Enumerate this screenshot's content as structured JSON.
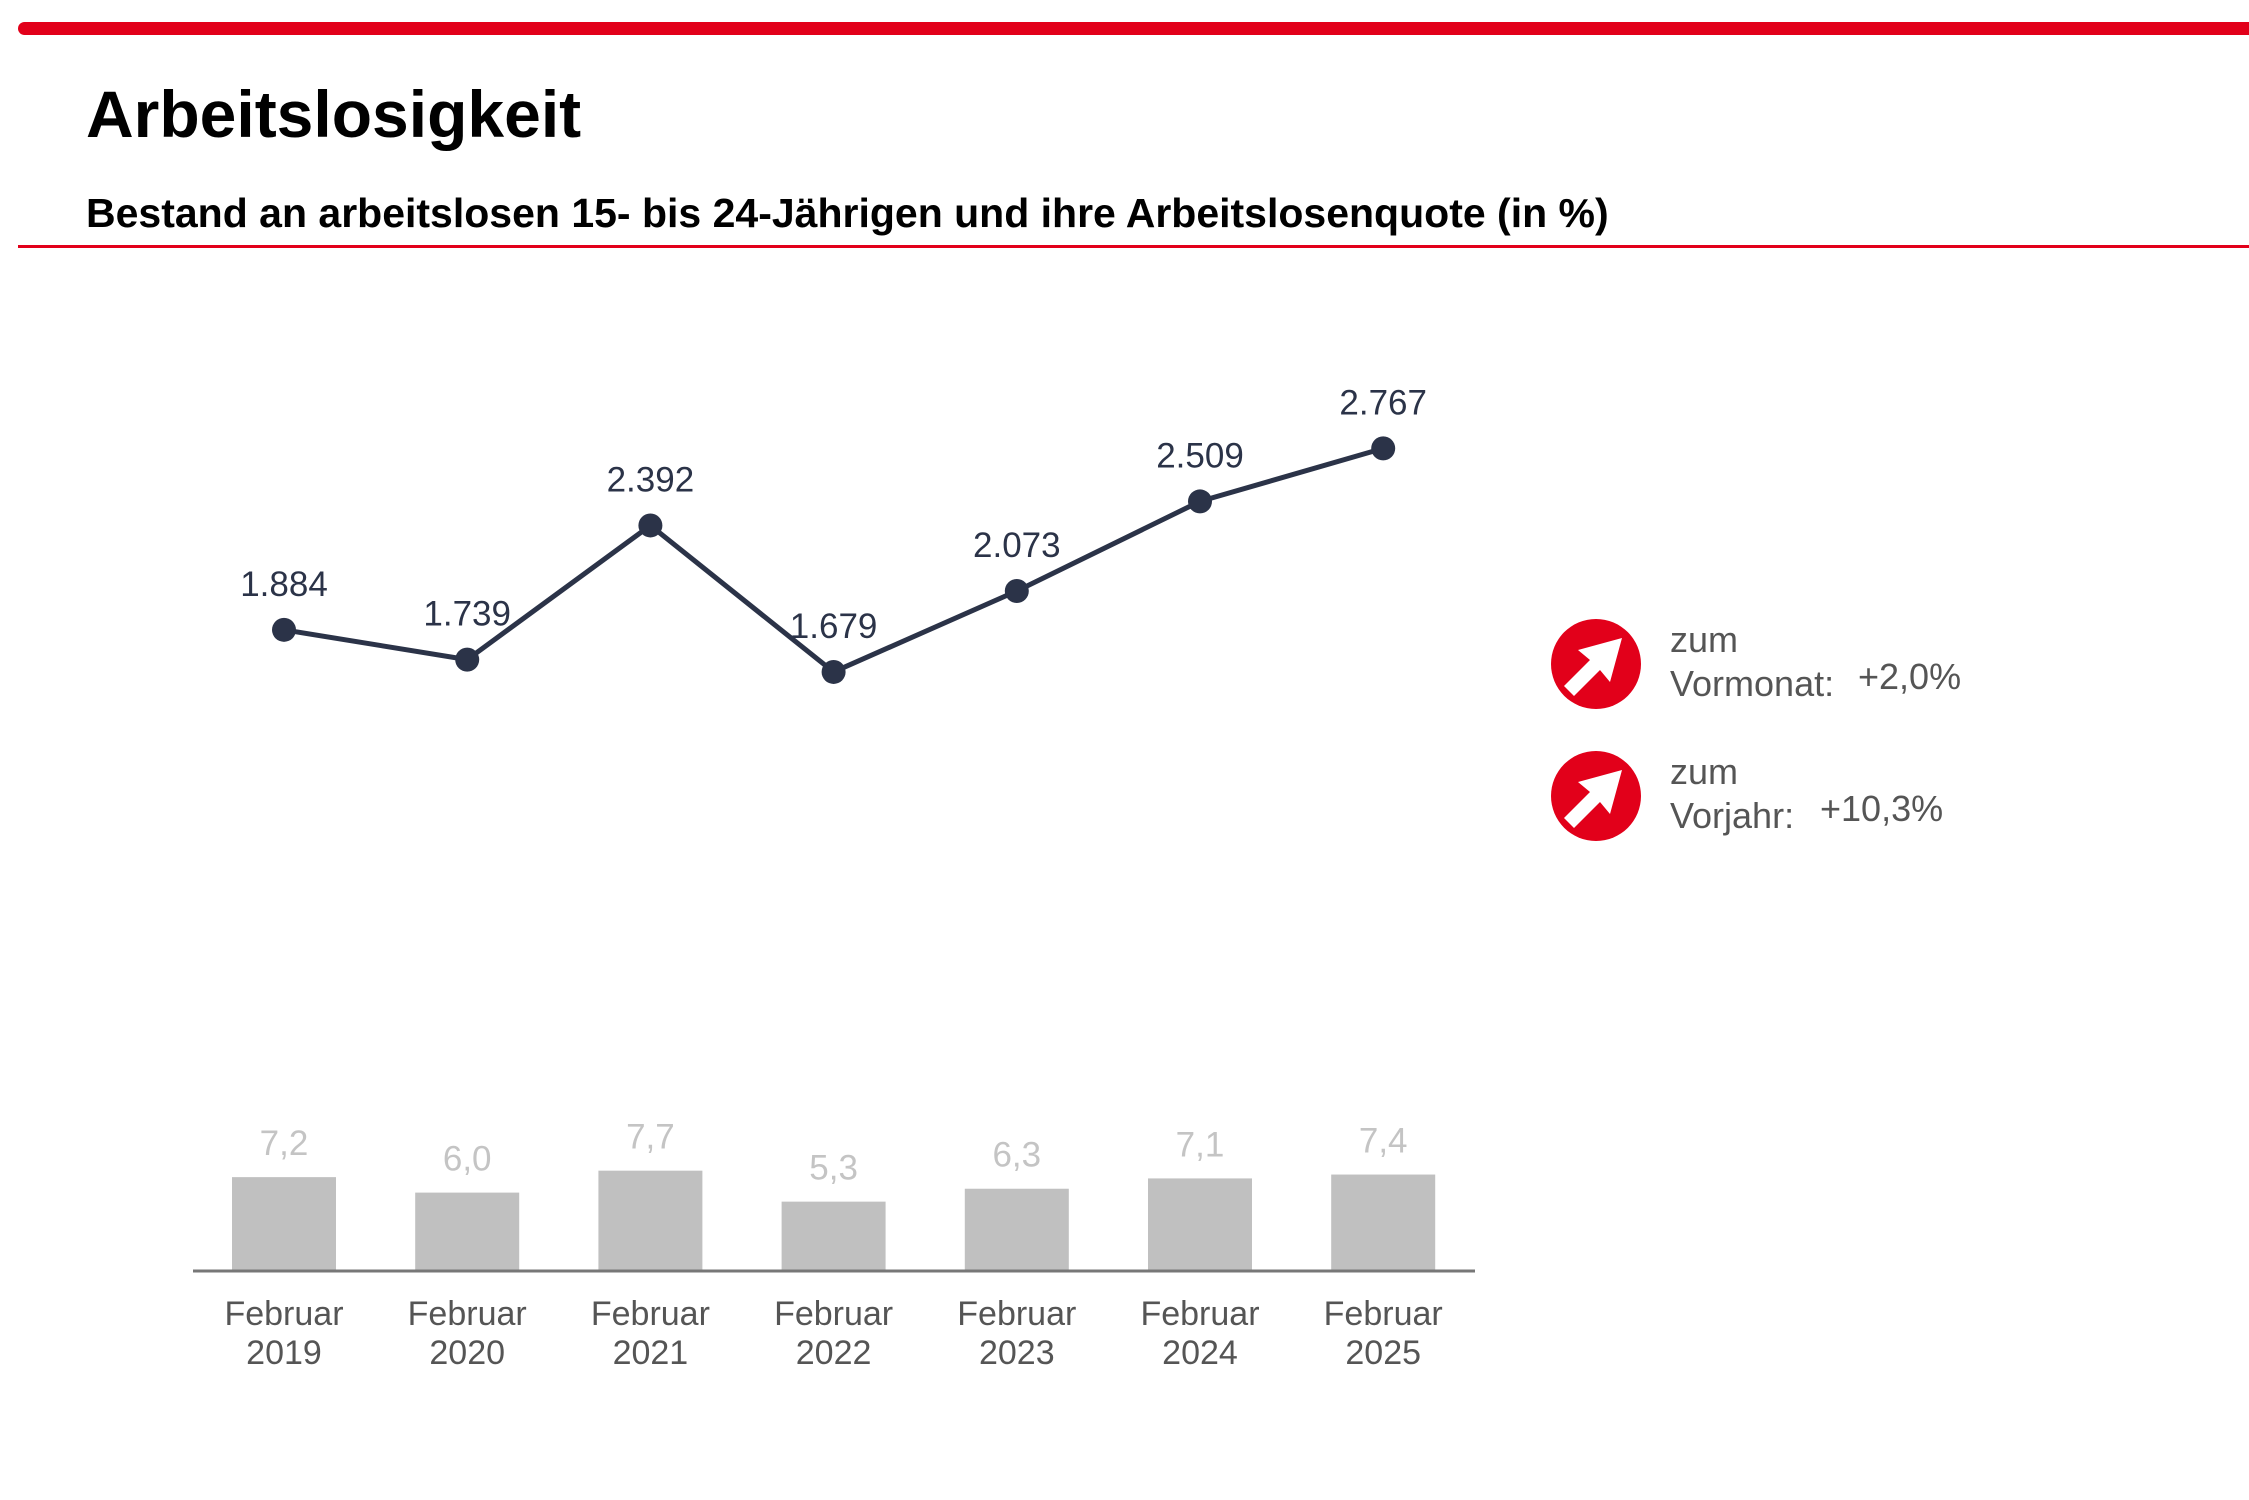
{
  "header": {
    "title": "Arbeitslosigkeit",
    "subtitle": "Bestand an arbeitslosen 15- bis 24-Jährigen und ihre Arbeitslosenquote (in %)"
  },
  "colors": {
    "accent": "#e2001a",
    "line": "#2b3348",
    "bar": "#c0c0c0",
    "bar_label": "#c4c4c4",
    "axis_label": "#555555"
  },
  "kpis": [
    {
      "icon": "arrow-up-right-icon",
      "label_line1": "zum",
      "label_line2": "Vormonat:",
      "value": "+2,0%"
    },
    {
      "icon": "arrow-up-right-icon",
      "label_line1": "zum",
      "label_line2": "Vorjahr:",
      "value": "+10,3%"
    }
  ],
  "chart_data": [
    {
      "type": "line",
      "title": "Bestand an arbeitslosen 15- bis 24-Jährigen",
      "categories": [
        "Februar 2019",
        "Februar 2020",
        "Februar 2021",
        "Februar 2022",
        "Februar 2023",
        "Februar 2024",
        "Februar 2025"
      ],
      "values": [
        1884,
        1739,
        2392,
        1679,
        2073,
        2509,
        2767
      ],
      "labels": [
        "1.884",
        "1.739",
        "2.392",
        "1.679",
        "2.073",
        "2.509",
        "2.767"
      ],
      "ylim": [
        0,
        3000
      ],
      "grid": false,
      "xlabel": "",
      "ylabel": ""
    },
    {
      "type": "bar",
      "title": "Arbeitslosenquote (in %)",
      "categories": [
        "Februar 2019",
        "Februar 2020",
        "Februar 2021",
        "Februar 2022",
        "Februar 2023",
        "Februar 2024",
        "Februar 2025"
      ],
      "category_lines": [
        [
          "Februar",
          "2019"
        ],
        [
          "Februar",
          "2020"
        ],
        [
          "Februar",
          "2021"
        ],
        [
          "Februar",
          "2022"
        ],
        [
          "Februar",
          "2023"
        ],
        [
          "Februar",
          "2024"
        ],
        [
          "Februar",
          "2025"
        ]
      ],
      "values": [
        7.2,
        6.0,
        7.7,
        5.3,
        6.3,
        7.1,
        7.4
      ],
      "labels": [
        "7,2",
        "6,0",
        "7,7",
        "5,3",
        "6,3",
        "7,1",
        "7,4"
      ],
      "ylim": [
        0,
        10
      ],
      "grid": false,
      "xlabel": "",
      "ylabel": ""
    }
  ]
}
